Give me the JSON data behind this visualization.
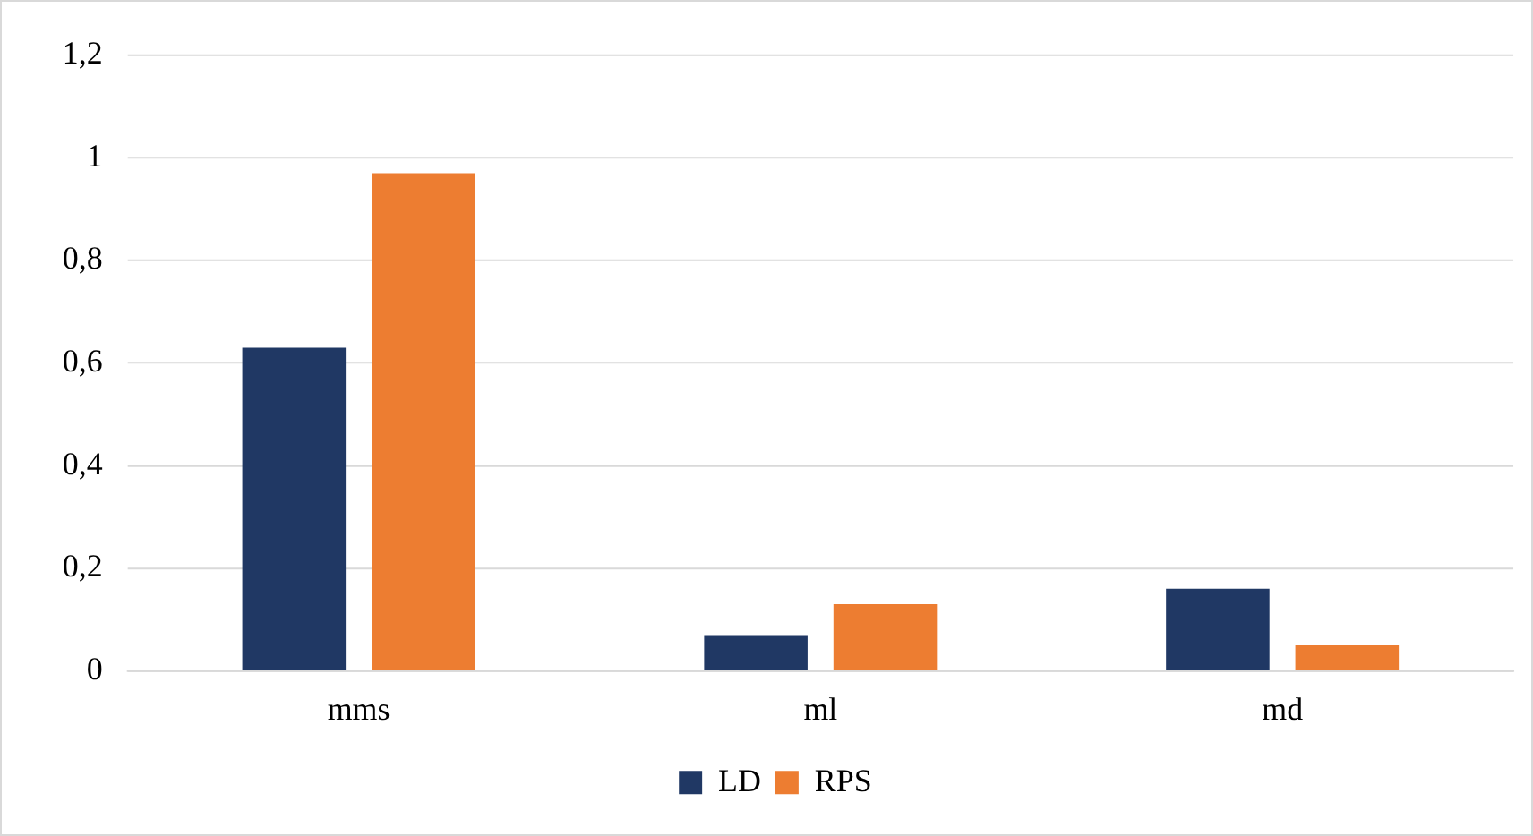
{
  "chart_data": {
    "type": "bar",
    "categories": [
      "mms",
      "ml",
      "md"
    ],
    "series": [
      {
        "name": "LD",
        "color": "#203864",
        "values": [
          0.63,
          0.07,
          0.16
        ]
      },
      {
        "name": "RPS",
        "color": "#ed7d31",
        "values": [
          0.97,
          0.13,
          0.05
        ]
      }
    ],
    "ylim": [
      0,
      1.2
    ],
    "yticks": [
      0,
      {
        "value": 0.2,
        "label": "0,2"
      },
      {
        "value": 0.4,
        "label": "0,4"
      },
      {
        "value": 0.6,
        "label": "0,6"
      },
      {
        "value": 0.8,
        "label": "0,8"
      },
      1,
      {
        "value": 1.2,
        "label": "1,2"
      }
    ],
    "grid": "y",
    "legend": "bottom"
  }
}
